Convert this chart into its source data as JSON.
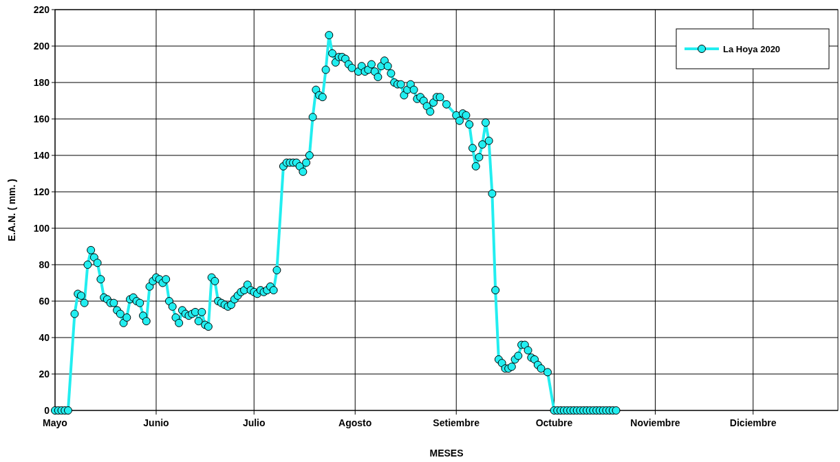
{
  "chart_data": {
    "type": "line",
    "xlabel": "MESES",
    "ylabel": "E.A.N. ( mm. )",
    "legend": "top right",
    "grid": true,
    "marker": "circle",
    "line_style": "solid",
    "xlim": [
      "2020-05-01",
      "2020-12-27"
    ],
    "xticks": [
      {
        "value": "2020-05-01",
        "label": "Mayo"
      },
      {
        "value": "2020-06-01",
        "label": "Junio"
      },
      {
        "value": "2020-07-01",
        "label": "Julio"
      },
      {
        "value": "2020-08-01",
        "label": "Agosto"
      },
      {
        "value": "2020-09-01",
        "label": "Setiembre"
      },
      {
        "value": "2020-10-01",
        "label": "Octubre"
      },
      {
        "value": "2020-11-01",
        "label": "Noviembre"
      },
      {
        "value": "2020-12-01",
        "label": "Diciembre"
      }
    ],
    "ylim": [
      0,
      220
    ],
    "yticks": [
      0,
      20,
      40,
      60,
      80,
      100,
      120,
      140,
      160,
      180,
      200,
      220
    ],
    "x": [
      "2020-05-01",
      "2020-05-02",
      "2020-05-03",
      "2020-05-04",
      "2020-05-05",
      "2020-05-07",
      "2020-05-08",
      "2020-05-09",
      "2020-05-10",
      "2020-05-11",
      "2020-05-12",
      "2020-05-13",
      "2020-05-14",
      "2020-05-15",
      "2020-05-16",
      "2020-05-17",
      "2020-05-18",
      "2020-05-19",
      "2020-05-20",
      "2020-05-21",
      "2020-05-22",
      "2020-05-23",
      "2020-05-24",
      "2020-05-25",
      "2020-05-26",
      "2020-05-27",
      "2020-05-28",
      "2020-05-29",
      "2020-05-30",
      "2020-05-31",
      "2020-06-01",
      "2020-06-02",
      "2020-06-03",
      "2020-06-04",
      "2020-06-05",
      "2020-06-06",
      "2020-06-07",
      "2020-06-08",
      "2020-06-09",
      "2020-06-10",
      "2020-06-11",
      "2020-06-12",
      "2020-06-13",
      "2020-06-14",
      "2020-06-15",
      "2020-06-16",
      "2020-06-17",
      "2020-06-18",
      "2020-06-19",
      "2020-06-20",
      "2020-06-21",
      "2020-06-22",
      "2020-06-23",
      "2020-06-24",
      "2020-06-25",
      "2020-06-26",
      "2020-06-27",
      "2020-06-28",
      "2020-06-29",
      "2020-06-30",
      "2020-07-01",
      "2020-07-02",
      "2020-07-03",
      "2020-07-04",
      "2020-07-05",
      "2020-07-06",
      "2020-07-07",
      "2020-07-08",
      "2020-07-10",
      "2020-07-11",
      "2020-07-12",
      "2020-07-13",
      "2020-07-14",
      "2020-07-15",
      "2020-07-16",
      "2020-07-17",
      "2020-07-18",
      "2020-07-19",
      "2020-07-20",
      "2020-07-21",
      "2020-07-22",
      "2020-07-23",
      "2020-07-24",
      "2020-07-25",
      "2020-07-26",
      "2020-07-27",
      "2020-07-28",
      "2020-07-29",
      "2020-07-30",
      "2020-07-31",
      "2020-08-02",
      "2020-08-03",
      "2020-08-04",
      "2020-08-05",
      "2020-08-06",
      "2020-08-07",
      "2020-08-08",
      "2020-08-09",
      "2020-08-10",
      "2020-08-11",
      "2020-08-12",
      "2020-08-13",
      "2020-08-14",
      "2020-08-15",
      "2020-08-16",
      "2020-08-17",
      "2020-08-18",
      "2020-08-19",
      "2020-08-20",
      "2020-08-21",
      "2020-08-22",
      "2020-08-23",
      "2020-08-24",
      "2020-08-25",
      "2020-08-26",
      "2020-08-27",
      "2020-08-29",
      "2020-09-01",
      "2020-09-02",
      "2020-09-03",
      "2020-09-04",
      "2020-09-05",
      "2020-09-06",
      "2020-09-07",
      "2020-09-08",
      "2020-09-09",
      "2020-09-10",
      "2020-09-11",
      "2020-09-12",
      "2020-09-13",
      "2020-09-14",
      "2020-09-15",
      "2020-09-16",
      "2020-09-17",
      "2020-09-18",
      "2020-09-19",
      "2020-09-20",
      "2020-09-21",
      "2020-09-22",
      "2020-09-23",
      "2020-09-24",
      "2020-09-25",
      "2020-09-26",
      "2020-09-27",
      "2020-09-29",
      "2020-10-01",
      "2020-10-02",
      "2020-10-03",
      "2020-10-04",
      "2020-10-05",
      "2020-10-06",
      "2020-10-07",
      "2020-10-08",
      "2020-10-09",
      "2020-10-10",
      "2020-10-11",
      "2020-10-12",
      "2020-10-13",
      "2020-10-14",
      "2020-10-15",
      "2020-10-16",
      "2020-10-17",
      "2020-10-18",
      "2020-10-19",
      "2020-10-20"
    ],
    "series": [
      {
        "name": "La Hoya 2020",
        "color": "#22eef0",
        "values": [
          0,
          0,
          0,
          0,
          0,
          53,
          64,
          63,
          59,
          80,
          88,
          84,
          81,
          72,
          62,
          61,
          59,
          59,
          55,
          53,
          48,
          51,
          61,
          62,
          60,
          59,
          52,
          49,
          68,
          71,
          73,
          72,
          70,
          72,
          60,
          57,
          51,
          48,
          55,
          53,
          52,
          53,
          54,
          49,
          54,
          47,
          46,
          73,
          71,
          60,
          59,
          58,
          57,
          58,
          61,
          63,
          65,
          66,
          69,
          66,
          65,
          64,
          66,
          65,
          66,
          68,
          66,
          77,
          134,
          136,
          136,
          136,
          136,
          134,
          131,
          136,
          140,
          161,
          176,
          173,
          172,
          187,
          206,
          196,
          191,
          194,
          194,
          193,
          190,
          188,
          186,
          189,
          186,
          187,
          190,
          186,
          183,
          189,
          192,
          189,
          185,
          180,
          179,
          179,
          173,
          176,
          179,
          176,
          171,
          172,
          170,
          167,
          164,
          169,
          172,
          172,
          168,
          162,
          159,
          163,
          162,
          157,
          144,
          134,
          139,
          146,
          158,
          148,
          119,
          66,
          28,
          26,
          23,
          23,
          24,
          28,
          30,
          36,
          36,
          33,
          29,
          28,
          25,
          23,
          21,
          0,
          0,
          0,
          0,
          0,
          0,
          0,
          0,
          0,
          0,
          0,
          0,
          0,
          0,
          0,
          0,
          0,
          0,
          0,
          0
        ]
      }
    ]
  }
}
